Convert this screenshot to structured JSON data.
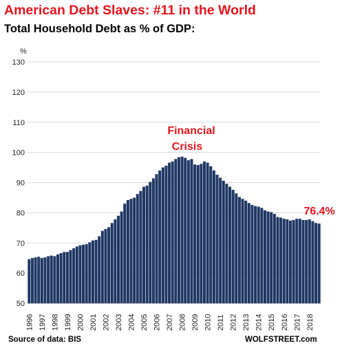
{
  "colors": {
    "title": "#e8141c",
    "bars": "#1f3864",
    "grid": "#d9d9d9",
    "annotation": "#e8141c"
  },
  "header": {
    "title": "American Debt Slaves: #11 in the World",
    "subtitle": "Total Household Debt as % of GDP:"
  },
  "footer": {
    "source": "Source of data: BIS",
    "brand": "WOLFSTREET.com"
  },
  "chart_data": {
    "type": "bar",
    "title": "American Debt Slaves: #11 in the World",
    "subtitle": "Total Household Debt as % of GDP:",
    "ylabel": "%",
    "ylim": [
      50,
      130
    ],
    "yticks": [
      50,
      60,
      70,
      80,
      90,
      100,
      110,
      120,
      130
    ],
    "grid": true,
    "xtick_labels": [
      "1996",
      "1997",
      "1998",
      "1999",
      "2000",
      "2001",
      "2002",
      "2003",
      "2004",
      "2005",
      "2006",
      "2007",
      "2008",
      "2009",
      "2010",
      "2011",
      "2012",
      "2013",
      "2014",
      "2015",
      "2016",
      "2017",
      "2018"
    ],
    "annotations": [
      {
        "text": "Financial",
        "near": "2008"
      },
      {
        "text": "Crisis",
        "near": "2008"
      },
      {
        "text": "76.4%",
        "near": "2018 Q4"
      }
    ],
    "categories": [
      "1996Q1",
      "1996Q2",
      "1996Q3",
      "1996Q4",
      "1997Q1",
      "1997Q2",
      "1997Q3",
      "1997Q4",
      "1998Q1",
      "1998Q2",
      "1998Q3",
      "1998Q4",
      "1999Q1",
      "1999Q2",
      "1999Q3",
      "1999Q4",
      "2000Q1",
      "2000Q2",
      "2000Q3",
      "2000Q4",
      "2001Q1",
      "2001Q2",
      "2001Q3",
      "2001Q4",
      "2002Q1",
      "2002Q2",
      "2002Q3",
      "2002Q4",
      "2003Q1",
      "2003Q2",
      "2003Q3",
      "2003Q4",
      "2004Q1",
      "2004Q2",
      "2004Q3",
      "2004Q4",
      "2005Q1",
      "2005Q2",
      "2005Q3",
      "2005Q4",
      "2006Q1",
      "2006Q2",
      "2006Q3",
      "2006Q4",
      "2007Q1",
      "2007Q2",
      "2007Q3",
      "2007Q4",
      "2008Q1",
      "2008Q2",
      "2008Q3",
      "2008Q4",
      "2009Q1",
      "2009Q2",
      "2009Q3",
      "2009Q4",
      "2010Q1",
      "2010Q2",
      "2010Q3",
      "2010Q4",
      "2011Q1",
      "2011Q2",
      "2011Q3",
      "2011Q4",
      "2012Q1",
      "2012Q2",
      "2012Q3",
      "2012Q4",
      "2013Q1",
      "2013Q2",
      "2013Q3",
      "2013Q4",
      "2014Q1",
      "2014Q2",
      "2014Q3",
      "2014Q4",
      "2015Q1",
      "2015Q2",
      "2015Q3",
      "2015Q4",
      "2016Q1",
      "2016Q2",
      "2016Q3",
      "2016Q4",
      "2017Q1",
      "2017Q2",
      "2017Q3",
      "2017Q4",
      "2018Q1",
      "2018Q2",
      "2018Q3",
      "2018Q4"
    ],
    "values": [
      64.6,
      65.0,
      65.2,
      65.4,
      65.0,
      65.2,
      65.6,
      65.8,
      65.6,
      66.2,
      66.6,
      67.0,
      67.0,
      67.6,
      68.2,
      68.8,
      69.2,
      69.4,
      69.6,
      70.2,
      70.8,
      71.0,
      72.2,
      74.0,
      74.6,
      75.2,
      76.6,
      77.8,
      79.0,
      80.4,
      83.0,
      84.2,
      84.6,
      85.0,
      86.2,
      87.2,
      88.6,
      89.0,
      90.2,
      91.4,
      92.8,
      94.0,
      95.0,
      95.6,
      96.6,
      97.0,
      97.8,
      98.4,
      98.6,
      98.2,
      97.4,
      97.8,
      96.0,
      95.8,
      96.2,
      97.0,
      96.6,
      95.4,
      94.0,
      92.6,
      91.6,
      90.6,
      89.6,
      88.6,
      87.6,
      86.4,
      85.2,
      84.6,
      84.0,
      83.2,
      82.6,
      82.2,
      82.0,
      81.6,
      80.8,
      80.4,
      80.2,
      79.6,
      78.6,
      78.4,
      78.0,
      77.8,
      77.4,
      77.6,
      78.0,
      78.0,
      77.6,
      77.6,
      77.8,
      77.2,
      76.6,
      76.4
    ]
  }
}
